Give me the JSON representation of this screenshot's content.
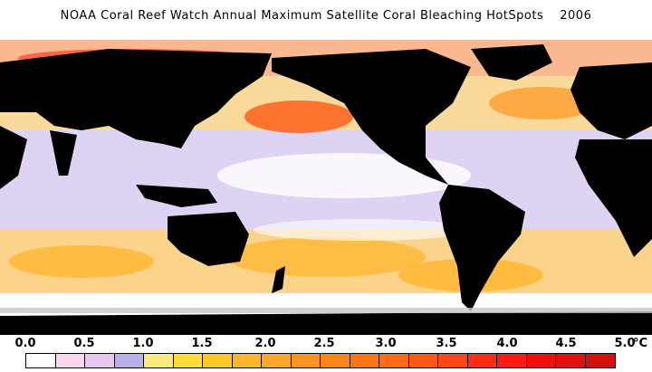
{
  "title": {
    "main": "NOAA Coral Reef Watch Annual Maximum Satellite Coral Bleaching HotSpots",
    "year": "2006"
  },
  "legend": {
    "ticks": [
      "0.0",
      "0.5",
      "1.0",
      "1.5",
      "2.0",
      "2.5",
      "3.0",
      "3.5",
      "4.0",
      "4.5",
      "5.0"
    ],
    "unit": "°C",
    "colors": [
      "#ffffff",
      "#fbd6ee",
      "#e8c8f0",
      "#b7b2ea",
      "#ffe97a",
      "#ffdb39",
      "#ffc822",
      "#ffb52a",
      "#ffa62a",
      "#ff9520",
      "#ff8418",
      "#ff7414",
      "#ff6a12",
      "#ff5a14",
      "#ff4616",
      "#ff2c14",
      "#ff1a12",
      "#ee0f0f",
      "#e21010",
      "#d60e0e"
    ]
  },
  "map": {
    "land_color": "#000000",
    "ocean_low_color": "#ffffff",
    "ice_color": "#c8c8c8"
  }
}
